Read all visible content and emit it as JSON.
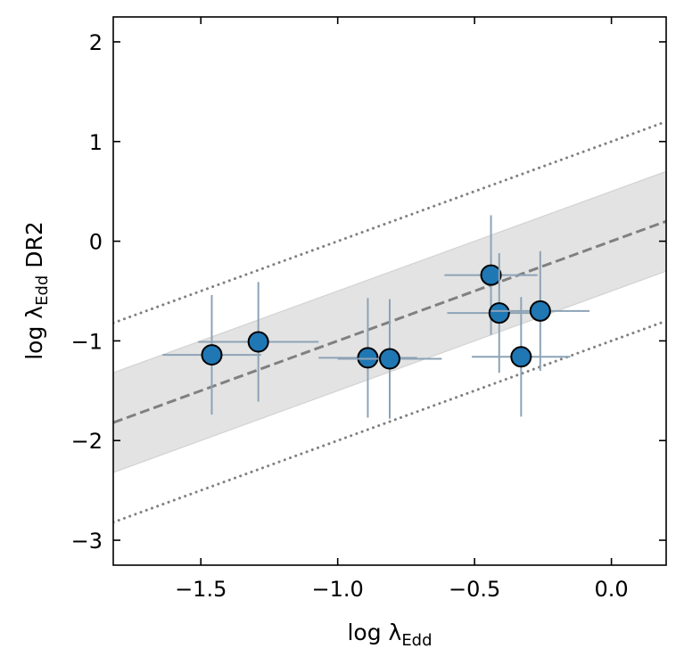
{
  "chart_data": {
    "type": "scatter",
    "title": "",
    "xlabel": "log λ",
    "xlabel_sub": "Edd",
    "ylabel_pre": "log λ",
    "ylabel_sub": "Edd",
    "ylabel_post": " DR2",
    "xlim": [
      -1.82,
      0.2
    ],
    "ylim": [
      -3.25,
      2.25
    ],
    "xticks": [
      -1.5,
      -1.0,
      -0.5,
      0.0
    ],
    "yticks": [
      -3,
      -2,
      -1,
      0,
      1,
      2
    ],
    "xtick_labels": [
      "−1.5",
      "−1.0",
      "−0.5",
      "0.0"
    ],
    "ytick_labels": [
      "−3",
      "−2",
      "−1",
      "0",
      "1",
      "2"
    ],
    "grid": false,
    "one_to_one": {
      "slope": 1,
      "intercept": 0,
      "style": "dashed",
      "color": "#808080"
    },
    "band_halfwidth": 0.5,
    "band_color": "#e3e3e3",
    "outer_offset": 1.0,
    "outer_style": "dotted",
    "marker_color": "#1f77b4",
    "errorbar_color": "#8da3b6",
    "points": [
      {
        "x": -1.46,
        "y": -1.14,
        "xerr": 0.18,
        "yerr": 0.6
      },
      {
        "x": -1.29,
        "y": -1.01,
        "xerr": 0.22,
        "yerr": 0.6
      },
      {
        "x": -0.89,
        "y": -1.17,
        "xerr": 0.18,
        "yerr": 0.6
      },
      {
        "x": -0.81,
        "y": -1.18,
        "xerr": 0.19,
        "yerr": 0.6
      },
      {
        "x": -0.44,
        "y": -0.34,
        "xerr": 0.17,
        "yerr": 0.6
      },
      {
        "x": -0.41,
        "y": -0.72,
        "xerr": 0.19,
        "yerr": 0.6
      },
      {
        "x": -0.26,
        "y": -0.7,
        "xerr": 0.18,
        "yerr": 0.6
      },
      {
        "x": -0.33,
        "y": -1.16,
        "xerr": 0.18,
        "yerr": 0.6
      }
    ]
  }
}
